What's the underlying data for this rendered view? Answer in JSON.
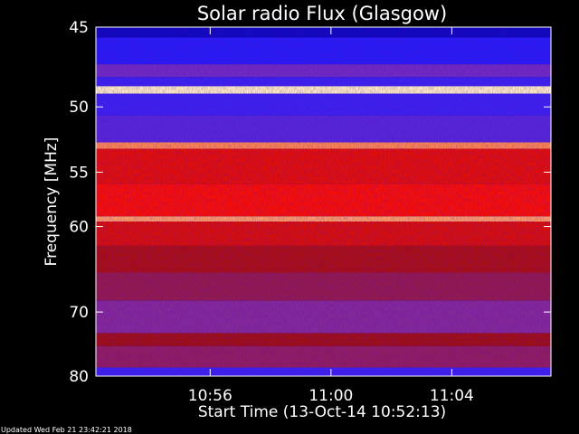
{
  "chart_data": {
    "type": "heatmap",
    "title": "Solar radio Flux (Glasgow)",
    "ylabel": "Frequency [MHz]",
    "xlabel": "Start Time (13-Oct-14 10:52:13)",
    "y_ticks": [
      45,
      50,
      55,
      60,
      70,
      80
    ],
    "y_scale": "reciprocal",
    "ylim": [
      80,
      45
    ],
    "x_tick_labels": [
      "10:56",
      "11:00",
      "11:04"
    ],
    "x_tick_values": [
      "10:56",
      "11:00",
      "11:04"
    ],
    "xlim": [
      "10:52:13",
      "11:07:17"
    ],
    "colormap": [
      "#0000a0",
      "#2a20ff",
      "#8030b0",
      "#a01010",
      "#ff1000",
      "#ff8040",
      "#fff0c0"
    ],
    "bands": [
      {
        "from": 45.0,
        "to": 45.6,
        "level": 0.05
      },
      {
        "from": 45.6,
        "to": 47.2,
        "level": 0.15
      },
      {
        "from": 47.2,
        "to": 48.0,
        "level": 0.3
      },
      {
        "from": 48.0,
        "to": 48.6,
        "level": 0.2
      },
      {
        "from": 48.6,
        "to": 49.1,
        "level": 1.0
      },
      {
        "from": 49.1,
        "to": 50.6,
        "level": 0.2
      },
      {
        "from": 50.6,
        "to": 52.6,
        "level": 0.25
      },
      {
        "from": 52.6,
        "to": 53.1,
        "level": 0.85
      },
      {
        "from": 53.1,
        "to": 56.0,
        "level": 0.62
      },
      {
        "from": 56.0,
        "to": 59.0,
        "level": 0.66
      },
      {
        "from": 59.0,
        "to": 59.5,
        "level": 0.88
      },
      {
        "from": 59.5,
        "to": 62.0,
        "level": 0.6
      },
      {
        "from": 62.0,
        "to": 65.0,
        "level": 0.52
      },
      {
        "from": 65.0,
        "to": 68.5,
        "level": 0.44
      },
      {
        "from": 68.5,
        "to": 73.0,
        "level": 0.36
      },
      {
        "from": 73.0,
        "to": 75.0,
        "level": 0.5
      },
      {
        "from": 75.0,
        "to": 78.5,
        "level": 0.42
      },
      {
        "from": 78.5,
        "to": 80.0,
        "level": 0.2
      }
    ]
  },
  "footer": {
    "updated": "Updated Wed Feb 21 23:42:21 2018"
  }
}
